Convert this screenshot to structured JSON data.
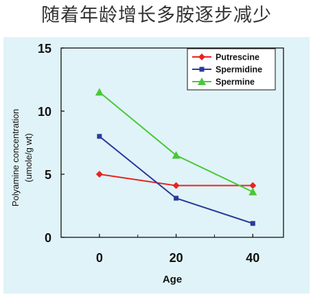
{
  "page": {
    "title": "随着年龄增长多胺逐步减少",
    "background": "#e0f3f8"
  },
  "chart_data": {
    "type": "line",
    "x": [
      0,
      20,
      40
    ],
    "xticks": [
      "0",
      "20",
      "40"
    ],
    "xlabel": "Age",
    "xlim": [
      -10,
      48
    ],
    "ylabel": [
      "Polyamine concentration",
      "(umole/g wt)"
    ],
    "ylim": [
      0,
      15
    ],
    "yticks": [
      0,
      5,
      10,
      15
    ],
    "grid": false,
    "legend_position": "top-right",
    "series": [
      {
        "name": "Putrescine",
        "values": [
          5.0,
          4.1,
          4.1
        ],
        "color": "#e8231f",
        "marker": "diamond"
      },
      {
        "name": "Spermidine",
        "values": [
          8.0,
          3.1,
          1.1
        ],
        "color": "#2a3a9c",
        "marker": "square"
      },
      {
        "name": "Spermine",
        "values": [
          11.5,
          6.5,
          3.6
        ],
        "color": "#48c838",
        "marker": "triangle"
      }
    ]
  }
}
